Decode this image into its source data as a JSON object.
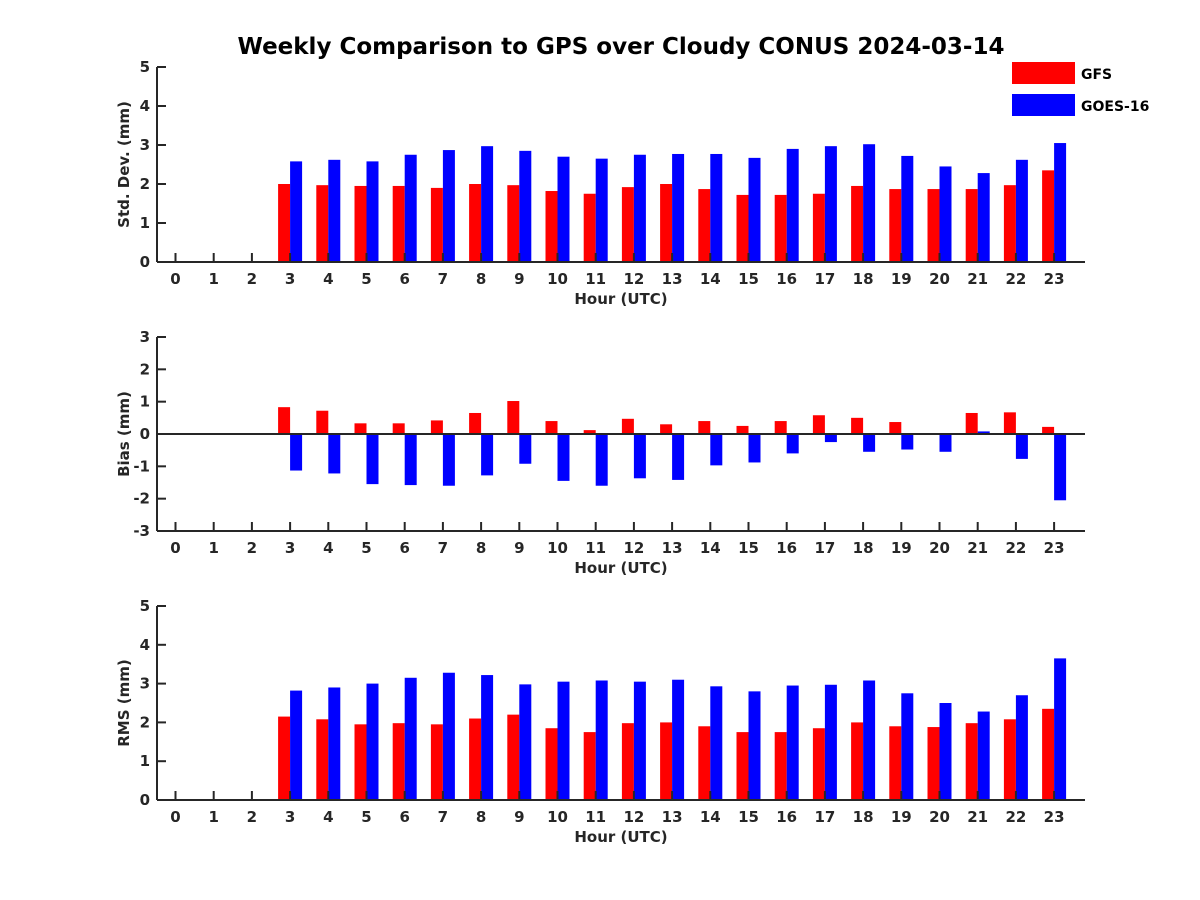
{
  "title": "Weekly Comparison to GPS over Cloudy CONUS 2024-03-14",
  "legend": [
    {
      "name": "GFS",
      "color": "#ff0000"
    },
    {
      "name": "GOES-16",
      "color": "#0000ff"
    }
  ],
  "chart_data": [
    {
      "type": "bar",
      "ylabel": "Std. Dev. (mm)",
      "xlabel": "Hour (UTC)",
      "ylim": [
        0,
        5
      ],
      "yticks": [
        0,
        1,
        2,
        3,
        4,
        5
      ],
      "categories": [
        "0",
        "1",
        "2",
        "3",
        "4",
        "5",
        "6",
        "7",
        "8",
        "9",
        "10",
        "11",
        "12",
        "13",
        "14",
        "15",
        "16",
        "17",
        "18",
        "19",
        "20",
        "21",
        "22",
        "23"
      ],
      "series": [
        {
          "name": "GFS",
          "color": "#ff0000",
          "values": [
            null,
            null,
            null,
            2.0,
            1.97,
            1.95,
            1.95,
            1.9,
            2.0,
            1.97,
            1.82,
            1.75,
            1.92,
            2.0,
            1.87,
            1.72,
            1.72,
            1.75,
            1.95,
            1.87,
            1.87,
            1.87,
            1.97,
            2.35
          ]
        },
        {
          "name": "GOES-16",
          "color": "#0000ff",
          "values": [
            null,
            null,
            null,
            2.58,
            2.62,
            2.58,
            2.75,
            2.87,
            2.97,
            2.85,
            2.7,
            2.65,
            2.75,
            2.77,
            2.77,
            2.67,
            2.9,
            2.97,
            3.02,
            2.72,
            2.45,
            2.28,
            2.62,
            3.05
          ]
        }
      ]
    },
    {
      "type": "bar",
      "ylabel": "Bias (mm)",
      "xlabel": "Hour (UTC)",
      "ylim": [
        -3,
        3
      ],
      "yticks": [
        -3,
        -2,
        -1,
        0,
        1,
        2,
        3
      ],
      "categories": [
        "0",
        "1",
        "2",
        "3",
        "4",
        "5",
        "6",
        "7",
        "8",
        "9",
        "10",
        "11",
        "12",
        "13",
        "14",
        "15",
        "16",
        "17",
        "18",
        "19",
        "20",
        "21",
        "22",
        "23"
      ],
      "series": [
        {
          "name": "GFS",
          "color": "#ff0000",
          "values": [
            null,
            null,
            null,
            0.83,
            0.72,
            0.33,
            0.33,
            0.42,
            0.65,
            1.02,
            0.4,
            0.12,
            0.47,
            0.3,
            0.4,
            0.25,
            0.4,
            0.58,
            0.5,
            0.37,
            0.0,
            0.65,
            0.67,
            0.22
          ]
        },
        {
          "name": "GOES-16",
          "color": "#0000ff",
          "values": [
            null,
            null,
            null,
            -1.13,
            -1.22,
            -1.55,
            -1.58,
            -1.6,
            -1.28,
            -0.92,
            -1.45,
            -1.6,
            -1.37,
            -1.42,
            -0.97,
            -0.88,
            -0.6,
            -0.25,
            -0.55,
            -0.48,
            -0.55,
            0.08,
            -0.77,
            -2.05
          ]
        }
      ]
    },
    {
      "type": "bar",
      "ylabel": "RMS (mm)",
      "xlabel": "Hour (UTC)",
      "ylim": [
        0,
        5
      ],
      "yticks": [
        0,
        1,
        2,
        3,
        4,
        5
      ],
      "categories": [
        "0",
        "1",
        "2",
        "3",
        "4",
        "5",
        "6",
        "7",
        "8",
        "9",
        "10",
        "11",
        "12",
        "13",
        "14",
        "15",
        "16",
        "17",
        "18",
        "19",
        "20",
        "21",
        "22",
        "23"
      ],
      "series": [
        {
          "name": "GFS",
          "color": "#ff0000",
          "values": [
            null,
            null,
            null,
            2.15,
            2.08,
            1.95,
            1.98,
            1.95,
            2.1,
            2.2,
            1.85,
            1.75,
            1.98,
            2.0,
            1.9,
            1.75,
            1.75,
            1.85,
            2.0,
            1.9,
            1.88,
            1.98,
            2.08,
            2.35
          ]
        },
        {
          "name": "GOES-16",
          "color": "#0000ff",
          "values": [
            null,
            null,
            null,
            2.82,
            2.9,
            3.0,
            3.15,
            3.28,
            3.22,
            2.98,
            3.05,
            3.08,
            3.05,
            3.1,
            2.93,
            2.8,
            2.95,
            2.97,
            3.08,
            2.75,
            2.5,
            2.28,
            2.7,
            3.65
          ]
        }
      ]
    }
  ]
}
